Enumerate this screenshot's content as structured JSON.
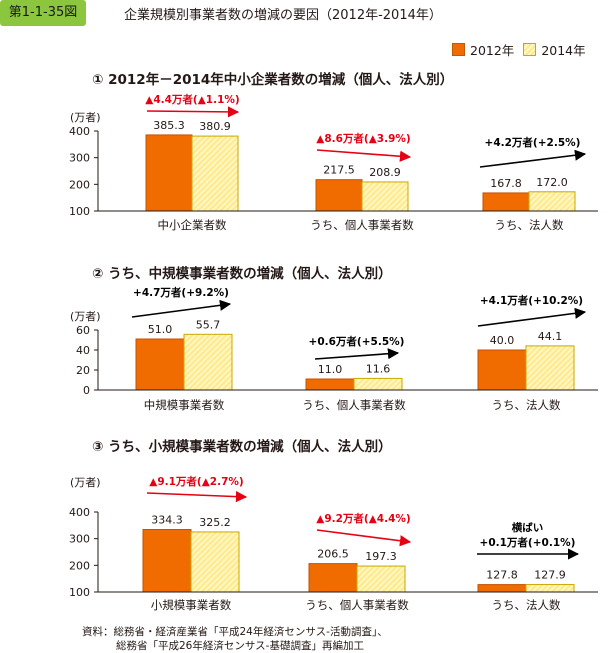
{
  "figure": {
    "label": "第1-1-35図",
    "title": "企業規模別事業者数の増減の要因（2012年-2014年）"
  },
  "legend": {
    "s2012": "2012年",
    "s2014": "2014年"
  },
  "colors": {
    "s2012": "#f06b00",
    "s2012_edge": "#c65300",
    "s2014": "#ffe98a",
    "s2014_edge": "#c9a800",
    "red": "#e60012",
    "black": "#000000"
  },
  "chart_data": [
    {
      "type": "bar",
      "title": "① 2012年－2014年中小企業者数の増減（個人、法人別）",
      "ylabel": "(万者)",
      "ylim": [
        100,
        400
      ],
      "yticks": [
        100,
        200,
        300,
        400
      ],
      "categories": [
        "中小企業者数",
        "うち、個人事業者数",
        "うち、法人数"
      ],
      "series": [
        {
          "name": "2012年",
          "values": [
            385.3,
            217.5,
            167.8
          ],
          "labels": [
            "385.3",
            "217.5",
            "167.8"
          ]
        },
        {
          "name": "2014年",
          "values": [
            380.9,
            208.9,
            172.0
          ],
          "labels": [
            "380.9",
            "208.9",
            "172.0"
          ]
        }
      ],
      "annotations": [
        {
          "lines": [
            "▲4.4万者(▲1.1%)"
          ],
          "color": "red",
          "trend": "down"
        },
        {
          "lines": [
            "▲8.6万者(▲3.9%)"
          ],
          "color": "red",
          "trend": "down"
        },
        {
          "lines": [
            "+4.2万者(+2.5%)"
          ],
          "color": "black",
          "trend": "up"
        }
      ]
    },
    {
      "type": "bar",
      "title": "② うち、中規模事業者数の増減（個人、法人別）",
      "ylabel": "(万者)",
      "ylim": [
        0,
        60
      ],
      "yticks": [
        0,
        20,
        40,
        60
      ],
      "categories": [
        "中規模事業者数",
        "うち、個人事業者数",
        "うち、法人数"
      ],
      "series": [
        {
          "name": "2012年",
          "values": [
            51.0,
            11.0,
            40.0
          ],
          "labels": [
            "51.0",
            "11.0",
            "40.0"
          ]
        },
        {
          "name": "2014年",
          "values": [
            55.7,
            11.6,
            44.1
          ],
          "labels": [
            "55.7",
            "11.6",
            "44.1"
          ]
        }
      ],
      "annotations": [
        {
          "lines": [
            "+4.7万者(+9.2%)"
          ],
          "color": "black",
          "trend": "up"
        },
        {
          "lines": [
            "+0.6万者(+5.5%)"
          ],
          "color": "black",
          "trend": "up"
        },
        {
          "lines": [
            "+4.1万者(+10.2%)"
          ],
          "color": "black",
          "trend": "up"
        }
      ]
    },
    {
      "type": "bar",
      "title": "③ うち、小規模事業者数の増減（個人、法人別）",
      "ylabel": "(万者)",
      "ylim": [
        100,
        400
      ],
      "yticks": [
        100,
        200,
        300,
        400
      ],
      "categories": [
        "小規模事業者数",
        "うち、個人事業者数",
        "うち、法人数"
      ],
      "series": [
        {
          "name": "2012年",
          "values": [
            334.3,
            206.5,
            127.8
          ],
          "labels": [
            "334.3",
            "206.5",
            "127.8"
          ]
        },
        {
          "name": "2014年",
          "values": [
            325.2,
            197.3,
            127.9
          ],
          "labels": [
            "325.2",
            "197.3",
            "127.9"
          ]
        }
      ],
      "annotations": [
        {
          "lines": [
            "▲9.1万者(▲2.7%)"
          ],
          "color": "red",
          "trend": "down"
        },
        {
          "lines": [
            "▲9.2万者(▲4.4%)"
          ],
          "color": "red",
          "trend": "down"
        },
        {
          "lines": [
            "横ばい",
            "+0.1万者(+0.1%)"
          ],
          "color": "black",
          "trend": "flat"
        }
      ]
    }
  ],
  "source": {
    "line1": "資料：総務省・経済産業省「平成24年経済センサス-活動調査」、",
    "line2": "総務省「平成26年経済センサス-基礎調査」再編加工"
  }
}
